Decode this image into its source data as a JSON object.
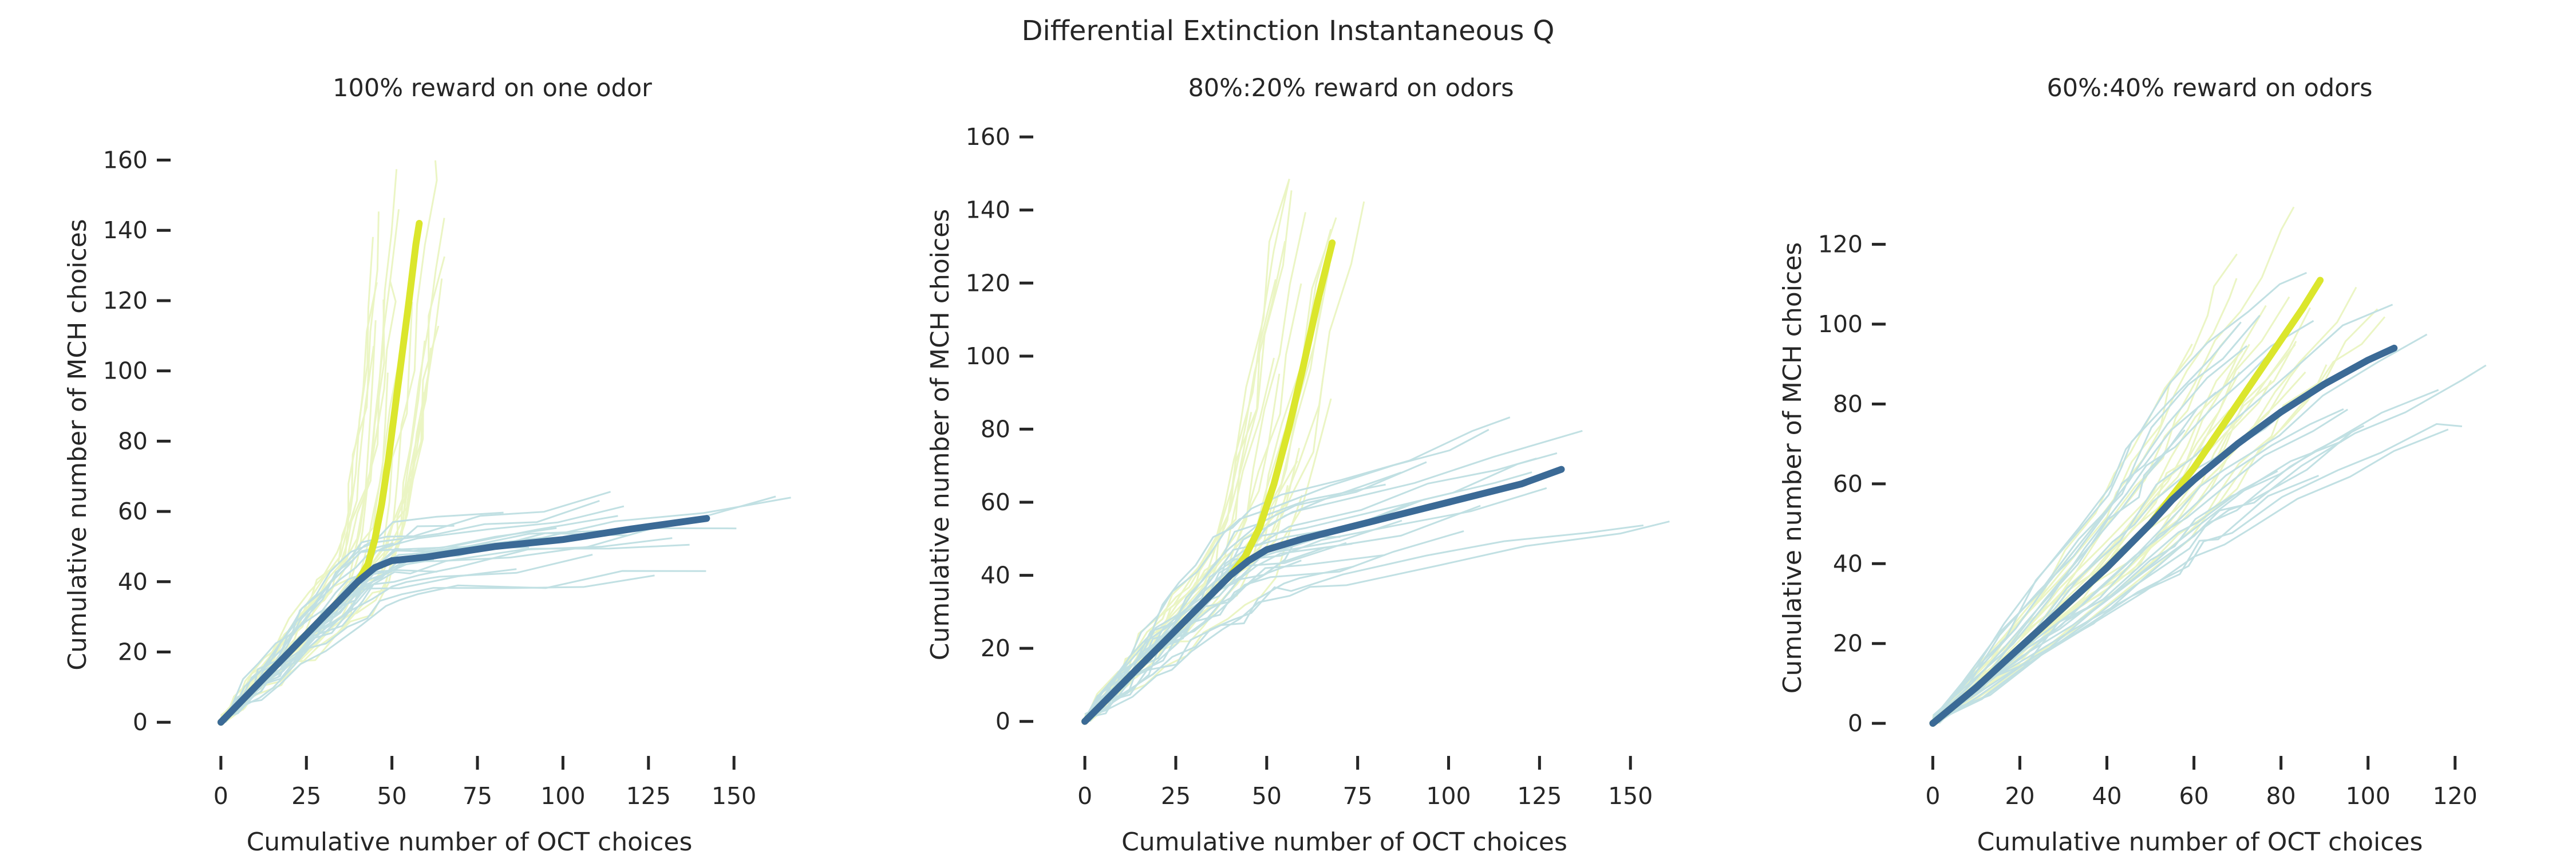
{
  "figure": {
    "title": "Differential Extinction Instantaneous Q",
    "colors": {
      "bright": "#dbe62c",
      "dark": "#3b6a96",
      "bright_individual": "#c7e55a",
      "dark_individual": "#4fa8b0"
    }
  },
  "chart_data": [
    {
      "type": "line",
      "title": "100% reward on one odor",
      "xlabel": "Cumulative number of OCT choices",
      "ylabel": "Cumulative number of MCH choices",
      "xticks": [
        0,
        25,
        50,
        75,
        100,
        125,
        150
      ],
      "yticks": [
        0,
        20,
        40,
        60,
        80,
        100,
        120,
        140,
        160
      ],
      "xlim": [
        -6,
        158
      ],
      "ylim": [
        -6,
        164
      ],
      "grid": false,
      "legend": "none",
      "series": [
        {
          "style": "mean",
          "color": "bright",
          "x": [
            0,
            5,
            10,
            15,
            20,
            25,
            30,
            35,
            40,
            43,
            45,
            47,
            49,
            51,
            53,
            55,
            57,
            58
          ],
          "y": [
            0,
            5,
            10,
            15,
            20,
            25,
            30,
            35,
            40,
            45,
            52,
            62,
            75,
            90,
            105,
            120,
            136,
            142
          ]
        },
        {
          "style": "mean",
          "color": "dark",
          "x": [
            0,
            5,
            10,
            15,
            20,
            25,
            30,
            35,
            40,
            45,
            50,
            60,
            80,
            100,
            120,
            142
          ],
          "y": [
            0,
            5,
            10,
            15,
            20,
            25,
            30,
            35,
            40,
            44,
            46,
            47,
            50,
            52,
            55,
            58
          ]
        }
      ]
    },
    {
      "type": "line",
      "title": "80%:20% reward on odors",
      "xlabel": "Cumulative number of OCT choices",
      "ylabel": "Cumulative number of MCH choices",
      "xticks": [
        0,
        25,
        50,
        75,
        100,
        125,
        150
      ],
      "yticks": [
        0,
        20,
        40,
        60,
        80,
        100,
        120,
        140,
        160
      ],
      "xlim": [
        -6,
        155
      ],
      "ylim": [
        -6,
        163
      ],
      "grid": false,
      "legend": "none",
      "series": [
        {
          "style": "mean",
          "color": "bright",
          "x": [
            0,
            5,
            10,
            15,
            20,
            25,
            30,
            35,
            40,
            44,
            48,
            52,
            56,
            60,
            64,
            68
          ],
          "y": [
            0,
            5,
            10,
            15,
            20,
            25,
            30,
            35,
            40,
            45,
            53,
            65,
            80,
            97,
            115,
            131
          ]
        },
        {
          "style": "mean",
          "color": "dark",
          "x": [
            0,
            5,
            10,
            15,
            20,
            25,
            30,
            35,
            40,
            45,
            50,
            60,
            80,
            100,
            120,
            131
          ],
          "y": [
            0,
            5,
            10,
            15,
            20,
            25,
            30,
            35,
            40,
            44,
            47,
            50,
            55,
            60,
            65,
            69
          ]
        }
      ]
    },
    {
      "type": "line",
      "title": "60%:40% reward on odors",
      "xlabel": "Cumulative number of OCT choices",
      "ylabel": "Cumulative number of MCH choices",
      "xticks": [
        0,
        20,
        40,
        60,
        80,
        100,
        120
      ],
      "yticks": [
        0,
        20,
        40,
        60,
        80,
        100,
        120
      ],
      "xlim": [
        -4,
        132
      ],
      "ylim": [
        -5,
        133
      ],
      "grid": false,
      "legend": "none",
      "series": [
        {
          "style": "mean",
          "color": "bright",
          "x": [
            0,
            10,
            20,
            30,
            40,
            50,
            55,
            60,
            65,
            70,
            75,
            80,
            85,
            89
          ],
          "y": [
            0,
            9,
            19,
            29,
            39,
            50,
            57,
            64,
            72,
            80,
            88,
            96,
            104,
            111
          ]
        },
        {
          "style": "mean",
          "color": "dark",
          "x": [
            0,
            10,
            20,
            30,
            40,
            50,
            55,
            60,
            70,
            80,
            90,
            100,
            106
          ],
          "y": [
            0,
            9,
            19,
            29,
            39,
            50,
            56,
            61,
            70,
            78,
            85,
            91,
            94
          ]
        }
      ]
    }
  ]
}
